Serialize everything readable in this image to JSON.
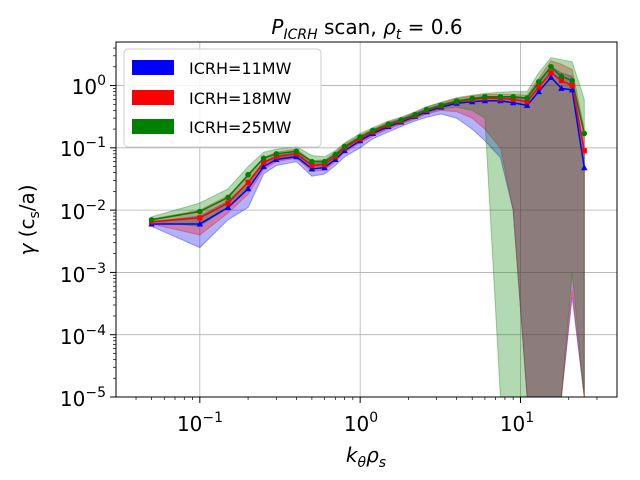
{
  "chart_data": {
    "type": "line",
    "title": {
      "prefix": "P",
      "prefix_sub": "ICRH",
      "mid": " scan, ",
      "rho": "ρ",
      "rho_sub": "t",
      "suffix": " = 0.6"
    },
    "xlabel": {
      "k": "k",
      "k_sub": "θ",
      "rho": "ρ",
      "rho_sub": "s"
    },
    "ylabel": {
      "gamma": "γ",
      "open": " (c",
      "c_sub": "s",
      "close": "/a)"
    },
    "x_scale": "log",
    "y_scale": "log",
    "xlim": [
      0.03,
      40
    ],
    "ylim": [
      1e-05,
      5
    ],
    "grid": true,
    "legend_position": "top-left",
    "x_ticks": [
      {
        "value": 0.1,
        "base": "10",
        "exp": "−1"
      },
      {
        "value": 1,
        "base": "10",
        "exp": "0"
      },
      {
        "value": 10,
        "base": "10",
        "exp": "1"
      }
    ],
    "y_ticks": [
      {
        "value": 1,
        "base": "10",
        "exp": "0"
      },
      {
        "value": 0.1,
        "base": "10",
        "exp": "−1"
      },
      {
        "value": 0.01,
        "base": "10",
        "exp": "−2"
      },
      {
        "value": 0.001,
        "base": "10",
        "exp": "−3"
      },
      {
        "value": 0.0001,
        "base": "10",
        "exp": "−4"
      },
      {
        "value": 1e-05,
        "base": "10",
        "exp": "−5"
      }
    ],
    "x": [
      0.05,
      0.1,
      0.15,
      0.2,
      0.25,
      0.3,
      0.4,
      0.5,
      0.6,
      0.7,
      0.8,
      1.0,
      1.2,
      1.5,
      1.8,
      2.2,
      2.6,
      3.2,
      4.0,
      5.0,
      6.0,
      7.5,
      9.0,
      11.0,
      13.0,
      15.5,
      18.0,
      21.0,
      25.0
    ],
    "series": [
      {
        "name": "ICRH=11MW",
        "color": "#0000ff",
        "marker": "triangle",
        "values": [
          0.006,
          0.006,
          0.011,
          0.022,
          0.05,
          0.065,
          0.072,
          0.046,
          0.048,
          0.065,
          0.09,
          0.13,
          0.17,
          0.22,
          0.26,
          0.32,
          0.38,
          0.45,
          0.52,
          0.55,
          0.57,
          0.57,
          0.53,
          0.48,
          0.8,
          1.35,
          0.9,
          0.85,
          0.048
        ],
        "lower": [
          0.0055,
          0.0025,
          0.007,
          0.011,
          0.038,
          0.052,
          0.06,
          0.035,
          0.038,
          0.052,
          0.072,
          0.1,
          0.14,
          0.18,
          0.22,
          0.27,
          0.31,
          0.35,
          0.3,
          0.2,
          0.13,
          0.07,
          0.01,
          1e-05,
          1e-05,
          1e-05,
          1e-05,
          0.0004,
          1e-05
        ],
        "upper": [
          0.0065,
          0.008,
          0.014,
          0.028,
          0.06,
          0.075,
          0.085,
          0.055,
          0.058,
          0.075,
          0.1,
          0.15,
          0.19,
          0.25,
          0.29,
          0.36,
          0.42,
          0.5,
          0.58,
          0.62,
          0.65,
          0.66,
          0.63,
          0.62,
          1.1,
          2.0,
          1.6,
          1.4,
          0.09
        ]
      },
      {
        "name": "ICRH=18MW",
        "color": "#ff0000",
        "marker": "square",
        "values": [
          0.0065,
          0.0075,
          0.013,
          0.028,
          0.058,
          0.072,
          0.08,
          0.052,
          0.054,
          0.072,
          0.1,
          0.14,
          0.18,
          0.23,
          0.27,
          0.33,
          0.4,
          0.47,
          0.55,
          0.6,
          0.63,
          0.62,
          0.6,
          0.55,
          0.95,
          1.6,
          1.2,
          1.0,
          0.09
        ],
        "lower": [
          0.006,
          0.004,
          0.009,
          0.018,
          0.045,
          0.06,
          0.068,
          0.042,
          0.044,
          0.06,
          0.085,
          0.12,
          0.155,
          0.2,
          0.24,
          0.29,
          0.35,
          0.4,
          0.38,
          0.3,
          0.2,
          0.1,
          0.01,
          1e-05,
          1e-05,
          1e-05,
          1e-05,
          0.0005,
          1e-05
        ],
        "upper": [
          0.0072,
          0.01,
          0.017,
          0.035,
          0.07,
          0.085,
          0.095,
          0.062,
          0.064,
          0.085,
          0.115,
          0.16,
          0.2,
          0.26,
          0.3,
          0.37,
          0.45,
          0.53,
          0.62,
          0.68,
          0.72,
          0.72,
          0.72,
          0.7,
          1.3,
          2.5,
          2.2,
          1.8,
          0.2
        ]
      },
      {
        "name": "ICRH=25MW",
        "color": "#008000",
        "marker": "circle",
        "values": [
          0.007,
          0.0095,
          0.016,
          0.037,
          0.068,
          0.08,
          0.088,
          0.06,
          0.06,
          0.078,
          0.105,
          0.15,
          0.19,
          0.24,
          0.28,
          0.34,
          0.41,
          0.48,
          0.56,
          0.62,
          0.66,
          0.66,
          0.66,
          0.63,
          1.15,
          2.0,
          1.4,
          1.2,
          0.17
        ],
        "lower": [
          0.0065,
          0.0055,
          0.011,
          0.024,
          0.055,
          0.068,
          0.075,
          0.05,
          0.05,
          0.066,
          0.09,
          0.13,
          0.165,
          0.21,
          0.25,
          0.3,
          0.36,
          0.42,
          0.45,
          0.4,
          0.3,
          1e-05,
          1e-05,
          1e-05,
          1e-05,
          1e-05,
          1e-05,
          0.001,
          1e-05
        ],
        "upper": [
          0.0078,
          0.013,
          0.022,
          0.05,
          0.085,
          0.095,
          0.105,
          0.075,
          0.072,
          0.09,
          0.12,
          0.17,
          0.21,
          0.27,
          0.31,
          0.38,
          0.46,
          0.54,
          0.64,
          0.7,
          0.75,
          0.78,
          0.8,
          0.8,
          1.6,
          2.8,
          2.6,
          2.4,
          0.6
        ]
      }
    ]
  }
}
